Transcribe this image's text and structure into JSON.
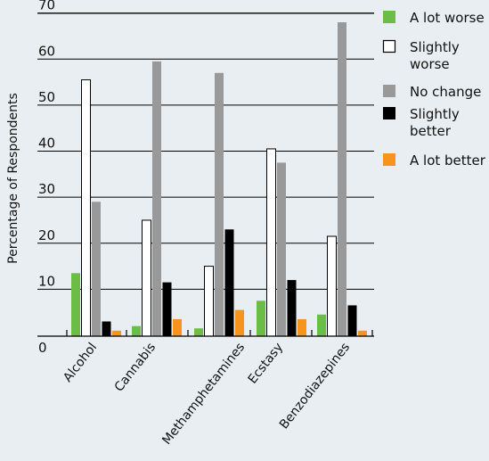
{
  "chart_data": {
    "type": "bar",
    "title": "",
    "xlabel": "",
    "ylabel": "Percentage of Respondents",
    "ylim": [
      0,
      70
    ],
    "yticks": [
      0,
      10,
      20,
      30,
      40,
      50,
      60,
      70
    ],
    "grid": true,
    "legend_position": "right",
    "categories": [
      "Alcohol",
      "Cannabis",
      "Methamphetamines",
      "Ecstasy",
      "Benzodiazepines"
    ],
    "series": [
      {
        "name": "A lot worse",
        "color": "#6cbd45",
        "stroke": "none",
        "values": [
          13.5,
          2,
          1.5,
          7.5,
          4.5
        ]
      },
      {
        "name": "Slightly worse",
        "color": "#ffffff",
        "stroke": "#000000",
        "values": [
          55.5,
          25,
          15,
          40.5,
          21.5
        ]
      },
      {
        "name": "No change",
        "color": "#999999",
        "stroke": "none",
        "values": [
          29,
          59.5,
          57,
          37.5,
          68
        ]
      },
      {
        "name": "Slightly better",
        "color": "#000000",
        "stroke": "none",
        "values": [
          3,
          11.5,
          23,
          12,
          6.5
        ]
      },
      {
        "name": "A lot better",
        "color": "#f7941d",
        "stroke": "none",
        "values": [
          1,
          3.5,
          5.5,
          3.5,
          1
        ]
      }
    ]
  }
}
